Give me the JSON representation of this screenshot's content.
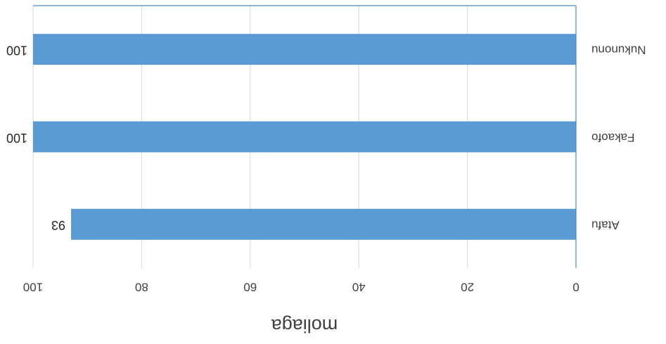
{
  "chart_data": {
    "type": "bar",
    "orientation": "horizontal",
    "categories": [
      "Nukunonu",
      "Fakaofo",
      "Atafu"
    ],
    "values": [
      100,
      100,
      93
    ],
    "data_labels": [
      "100",
      "100",
      "93"
    ],
    "title": "",
    "xlabel": "moliaga",
    "ylabel": "",
    "xlim": [
      0,
      100
    ],
    "xticks": [
      0,
      20,
      40,
      60,
      80,
      100
    ],
    "xtick_labels": [
      "0",
      "20",
      "40",
      "60",
      "80",
      "100"
    ],
    "grid": true,
    "rotated_180": true,
    "colors": {
      "bar": "#5b9bd5",
      "grid": "#d9d9d9",
      "axis": "#4a89c8",
      "text": "#404040"
    }
  }
}
